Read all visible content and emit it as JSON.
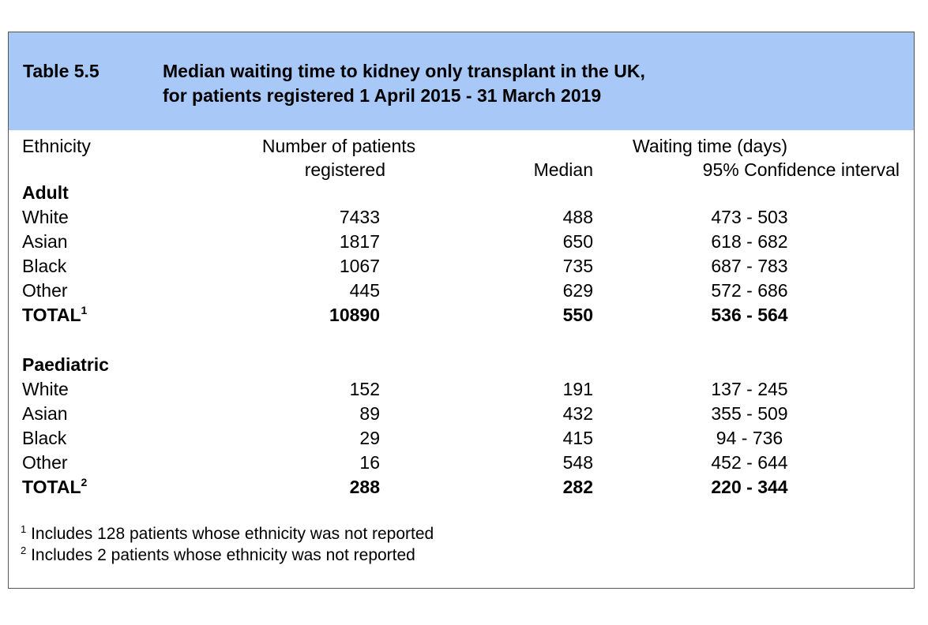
{
  "table": {
    "label": "Table 5.5",
    "title_line1": "Median waiting time to kidney only transplant in the UK,",
    "title_line2": "for patients registered 1 April 2015 - 31 March 2019",
    "colors": {
      "title_band": "#a8c8f8",
      "border": "#555555"
    },
    "headers": {
      "ethnicity": "Ethnicity",
      "patients_line1": "Number of patients",
      "patients_line2": "registered",
      "waiting": "Waiting time (days)",
      "median": "Median",
      "ci": "95% Confidence interval"
    },
    "sections": [
      {
        "name": "Adult",
        "rows": [
          {
            "ethnicity": "White",
            "patients": "7433",
            "median": "488",
            "ci": "473 - 503"
          },
          {
            "ethnicity": "Asian",
            "patients": "1817",
            "median": "650",
            "ci": "618 - 682"
          },
          {
            "ethnicity": "Black",
            "patients": "1067",
            "median": "735",
            "ci": "687 - 783"
          },
          {
            "ethnicity": "Other",
            "patients": "445",
            "median": "629",
            "ci": "572 - 686"
          }
        ],
        "total": {
          "label": "TOTAL",
          "mark": "1",
          "patients": "10890",
          "median": "550",
          "ci": "536 - 564"
        }
      },
      {
        "name": "Paediatric",
        "rows": [
          {
            "ethnicity": "White",
            "patients": "152",
            "median": "191",
            "ci": "137 - 245"
          },
          {
            "ethnicity": "Asian",
            "patients": "89",
            "median": "432",
            "ci": "355 - 509"
          },
          {
            "ethnicity": "Black",
            "patients": "29",
            "median": "415",
            "ci": "94 - 736"
          },
          {
            "ethnicity": "Other",
            "patients": "16",
            "median": "548",
            "ci": "452 - 644"
          }
        ],
        "total": {
          "label": "TOTAL",
          "mark": "2",
          "patients": "288",
          "median": "282",
          "ci": "220 - 344"
        }
      }
    ],
    "footnotes": [
      {
        "mark": "1",
        "text": "Includes 128 patients whose ethnicity was not reported"
      },
      {
        "mark": "2",
        "text": "Includes 2 patients whose ethnicity was not reported"
      }
    ]
  }
}
